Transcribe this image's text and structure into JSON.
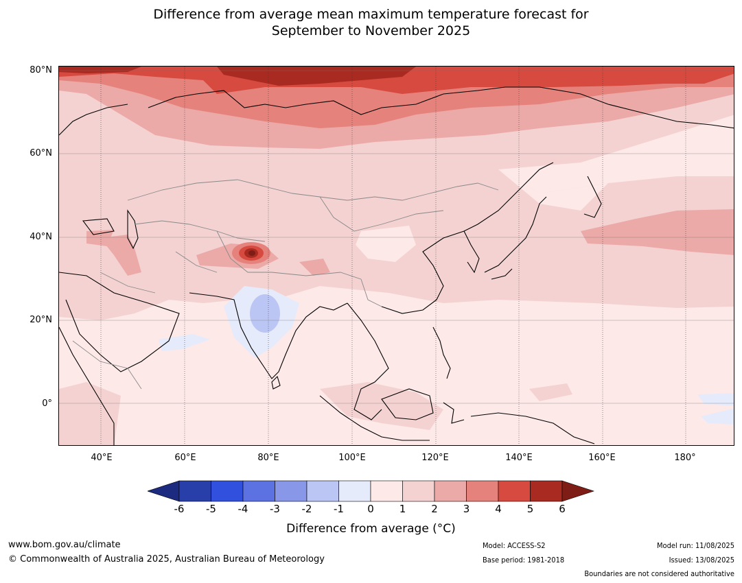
{
  "title": {
    "line1": "Difference from average mean maximum temperature forecast for",
    "line2": "September to November 2025"
  },
  "axes": {
    "y_labels": [
      "80°N",
      "60°N",
      "40°N",
      "20°N",
      "0°"
    ],
    "x_labels": [
      "40°E",
      "60°E",
      "80°E",
      "100°E",
      "120°E",
      "140°E",
      "160°E",
      "180°"
    ]
  },
  "colorbar": {
    "ticks": [
      "-6",
      "-5",
      "-4",
      "-3",
      "-2",
      "-1",
      "0",
      "1",
      "2",
      "3",
      "4",
      "5",
      "6"
    ],
    "colors": [
      "#1c2a80",
      "#283ea8",
      "#3050dd",
      "#5c72e2",
      "#8897e8",
      "#bcc6f4",
      "#e6ebfb",
      "#fde9e8",
      "#f4d2d2",
      "#ebaaa7",
      "#e5827c",
      "#d64a40",
      "#a92a20",
      "#7e1d16"
    ],
    "label": "Difference from average (°C)"
  },
  "footer": {
    "website": "www.bom.gov.au/climate",
    "copyright": "© Commonwealth of Australia 2025, Australian Bureau of Meteorology",
    "model": "Model: ACCESS-S2",
    "base_period": "Base period: 1981-2018",
    "model_run": "Model run: 11/08/2025",
    "issued": "Issued: 13/08/2025",
    "disclaimer": "Boundaries are not considered authoritative"
  }
}
